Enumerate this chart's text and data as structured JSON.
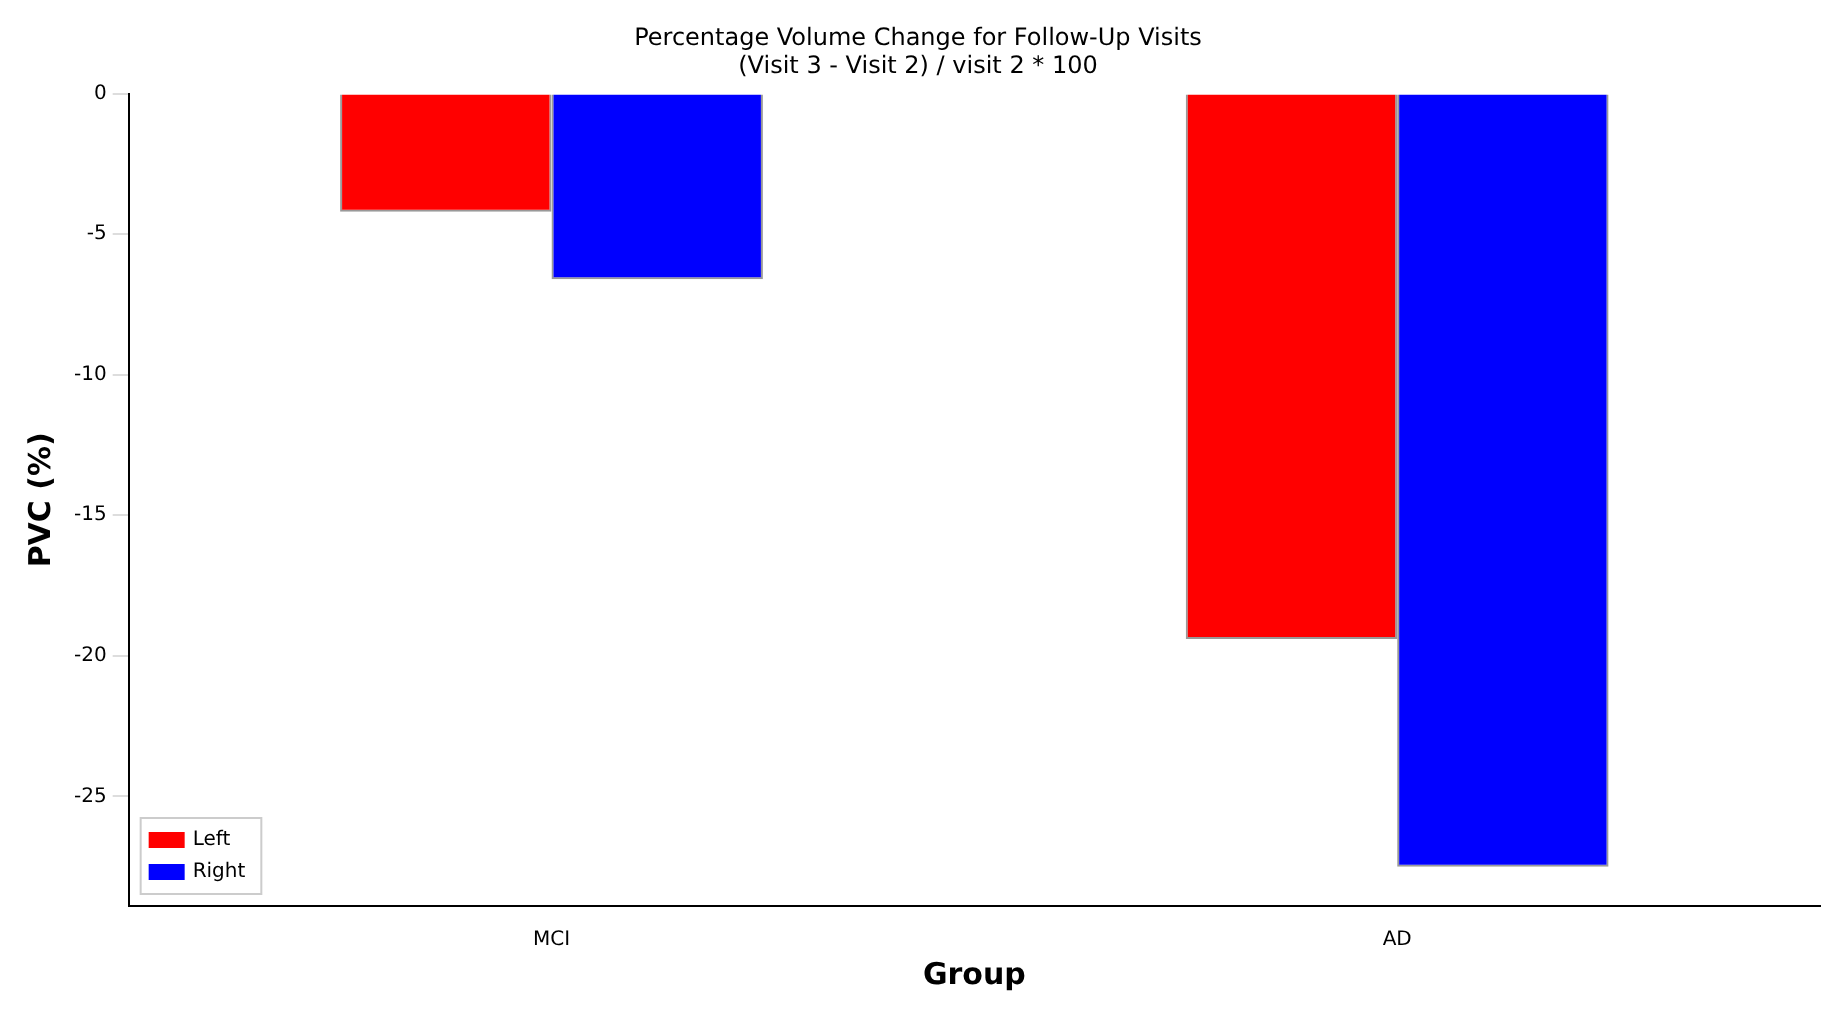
{
  "chart_data": {
    "type": "bar",
    "title": "Percentage Volume Change for Follow-Up Visits",
    "subtitle": "(Visit 3 - Visit 2) / visit 2 * 100",
    "xlabel": "Group",
    "ylabel": "PVC (%)",
    "categories": [
      "MCI",
      "AD"
    ],
    "series": [
      {
        "name": "Left",
        "color": "#ff0000",
        "values": [
          -4.2,
          -19.4
        ]
      },
      {
        "name": "Right",
        "color": "#0000ff",
        "values": [
          -6.6,
          -27.5
        ]
      }
    ],
    "ylim": [
      -28.9,
      0
    ],
    "yticks": [
      0,
      -5,
      -10,
      -15,
      -20,
      -25
    ],
    "grid": false,
    "legend": "bottom left"
  }
}
